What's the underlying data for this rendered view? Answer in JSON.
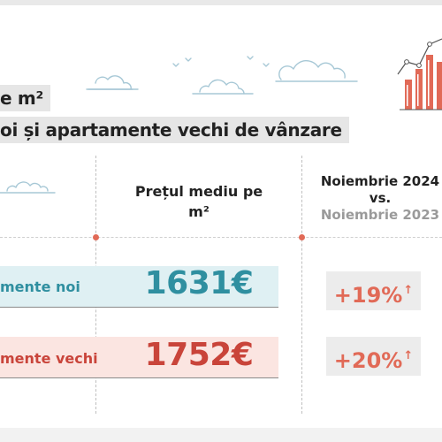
{
  "title": {
    "line1": "e m²",
    "line2": "oi și apartamente vechi de vânzare"
  },
  "header": {
    "price": "Prețul mediu pe m²",
    "compare_current": "Noiembrie 2024",
    "compare_vs": "vs.",
    "compare_previous": "Noiembrie 2023"
  },
  "rows": [
    {
      "label": "mente noi",
      "price": "1631€",
      "change": "+19%",
      "arrow": "↑",
      "color": "#2f8fa0"
    },
    {
      "label": "mente vechi",
      "price": "1752€",
      "change": "+20%",
      "arrow": "↑",
      "color": "#c9443a"
    }
  ],
  "colors": {
    "accent": "#e16a57",
    "teal": "#2f8fa0",
    "red": "#c9443a",
    "teal_band": "#dff0f3",
    "red_band": "#fbe5e1",
    "cloud": "#a7c8d6"
  },
  "icons": {
    "chart": "bar-chart-growth-icon",
    "cloud": "cloud-icon",
    "bird": "bird-icon"
  }
}
